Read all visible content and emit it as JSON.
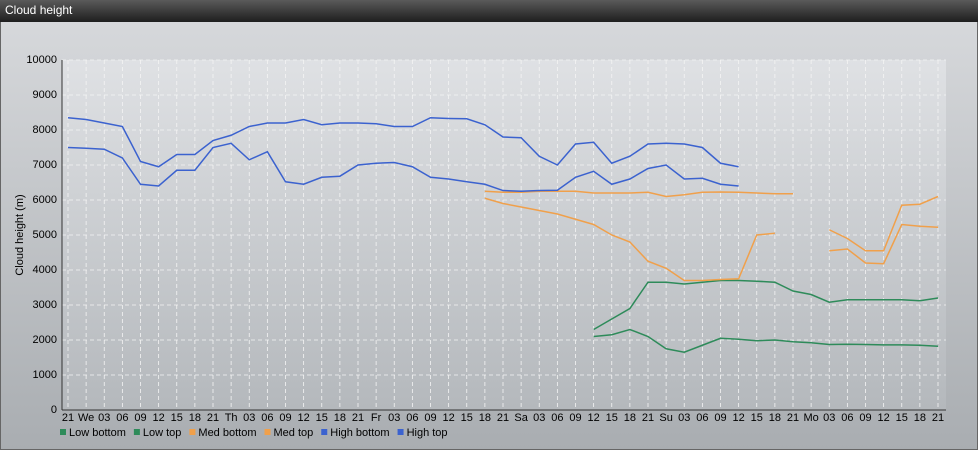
{
  "chart_data": {
    "type": "line",
    "title": "Cloud height",
    "ylabel": "Cloud height (m)",
    "categories": [
      "21",
      "We",
      "03",
      "06",
      "09",
      "12",
      "15",
      "18",
      "21",
      "Th",
      "03",
      "06",
      "09",
      "12",
      "15",
      "18",
      "21",
      "Fr",
      "03",
      "06",
      "09",
      "12",
      "15",
      "18",
      "21",
      "Sa",
      "03",
      "06",
      "09",
      "12",
      "15",
      "18",
      "21",
      "Su",
      "03",
      "06",
      "09",
      "12",
      "15",
      "18",
      "21",
      "Mo",
      "03",
      "06",
      "09",
      "12",
      "15",
      "18",
      "21"
    ],
    "ylim": [
      0,
      10000
    ],
    "yticks": [
      0,
      1000,
      2000,
      3000,
      4000,
      5000,
      6000,
      7000,
      8000,
      9000,
      10000
    ],
    "grid": true,
    "series": [
      {
        "name": "Low bottom",
        "color": "#2e8b5a",
        "values": [
          null,
          null,
          null,
          null,
          null,
          null,
          null,
          null,
          null,
          null,
          null,
          null,
          null,
          null,
          null,
          null,
          null,
          null,
          null,
          null,
          null,
          null,
          null,
          null,
          null,
          null,
          null,
          null,
          null,
          2100,
          2150,
          2300,
          2100,
          1750,
          1650,
          1850,
          2050,
          2020,
          1980,
          2000,
          1950,
          1920,
          1870,
          1880,
          1870,
          1860,
          1860,
          1850,
          1820
        ]
      },
      {
        "name": "Low top",
        "color": "#2e8b5a",
        "values": [
          null,
          null,
          null,
          null,
          null,
          null,
          null,
          null,
          null,
          null,
          null,
          null,
          null,
          null,
          null,
          null,
          null,
          null,
          null,
          null,
          null,
          null,
          null,
          null,
          null,
          null,
          null,
          null,
          null,
          2300,
          2600,
          2900,
          3650,
          3650,
          3600,
          3650,
          3700,
          3700,
          3680,
          3650,
          3400,
          3300,
          3080,
          3150,
          3150,
          3150,
          3150,
          3120,
          3200
        ]
      },
      {
        "name": "Med bottom",
        "color": "#f0a04b",
        "values": [
          null,
          null,
          null,
          null,
          null,
          null,
          null,
          null,
          null,
          null,
          null,
          null,
          null,
          null,
          null,
          null,
          null,
          null,
          null,
          null,
          null,
          null,
          null,
          6050,
          5900,
          5800,
          5700,
          5600,
          5450,
          5300,
          5000,
          4800,
          4250,
          4050,
          3700,
          3700,
          3730,
          3750,
          5000,
          5050,
          null,
          null,
          4550,
          4600,
          4200,
          4180,
          5300,
          5250,
          5220
        ]
      },
      {
        "name": "Med top",
        "color": "#f0a04b",
        "values": [
          null,
          null,
          null,
          null,
          null,
          null,
          null,
          null,
          null,
          null,
          null,
          null,
          null,
          null,
          null,
          null,
          null,
          null,
          null,
          null,
          null,
          null,
          null,
          6250,
          6220,
          6220,
          6250,
          6250,
          6250,
          6200,
          6200,
          6200,
          6220,
          6100,
          6150,
          6220,
          6230,
          6220,
          6200,
          6180,
          6180,
          null,
          5150,
          4900,
          4550,
          4550,
          5850,
          5880,
          6100
        ]
      },
      {
        "name": "High bottom",
        "color": "#3b62cf",
        "values": [
          7500,
          7480,
          7450,
          7200,
          6450,
          6400,
          6850,
          6850,
          7500,
          7620,
          7150,
          7380,
          6520,
          6450,
          6650,
          6680,
          7000,
          7050,
          7070,
          6950,
          6650,
          6600,
          6520,
          6450,
          6270,
          6250,
          6270,
          6280,
          6650,
          6820,
          6450,
          6600,
          6900,
          7000,
          6600,
          6620,
          6450,
          6400,
          null,
          null,
          null,
          null,
          null,
          null,
          null,
          null,
          null,
          null,
          null
        ]
      },
      {
        "name": "High top",
        "color": "#3b62cf",
        "values": [
          8350,
          8300,
          8200,
          8100,
          7100,
          6950,
          7300,
          7300,
          7700,
          7850,
          8100,
          8200,
          8200,
          8300,
          8150,
          8200,
          8200,
          8180,
          8100,
          8100,
          8350,
          8330,
          8320,
          8150,
          7800,
          7780,
          7250,
          7000,
          7600,
          7650,
          7050,
          7250,
          7600,
          7620,
          7600,
          7500,
          7050,
          6950,
          null,
          null,
          null,
          null,
          null,
          null,
          null,
          null,
          null,
          null,
          null
        ]
      }
    ]
  }
}
